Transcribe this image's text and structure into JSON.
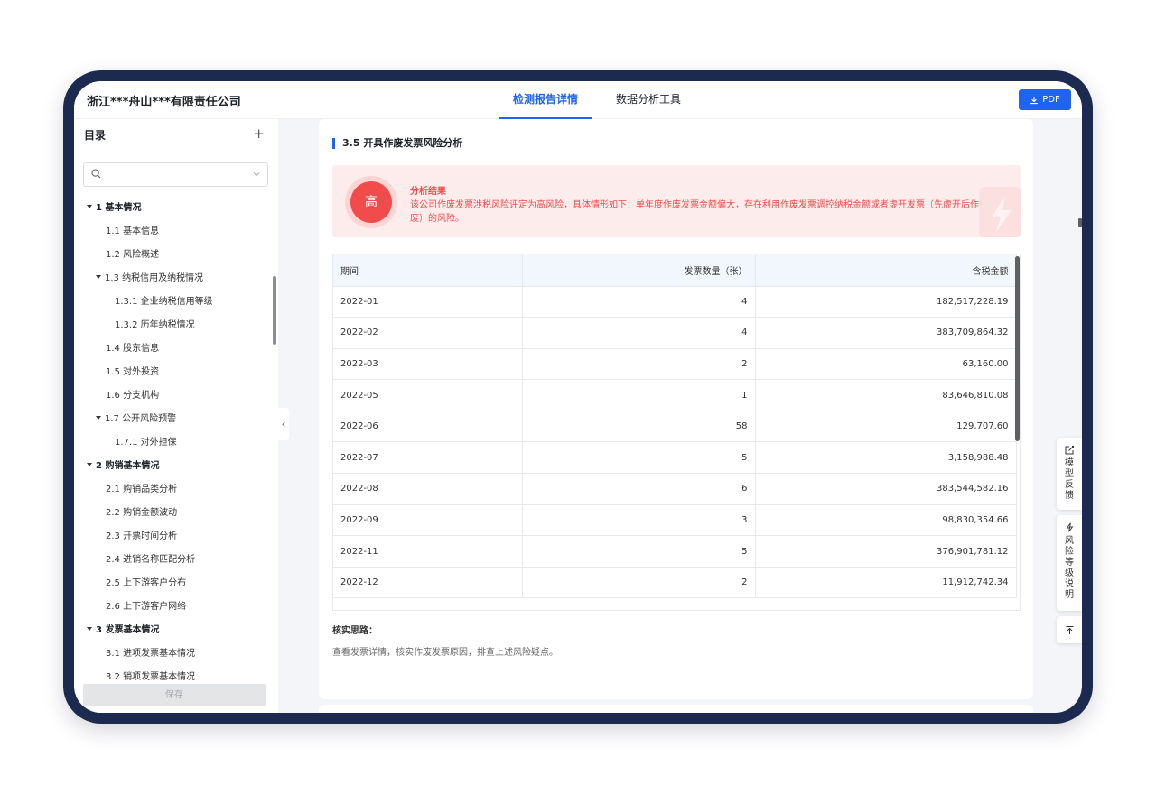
{
  "header": {
    "company": "浙江***舟山***有限责任公司",
    "tabs": [
      {
        "label": "检测报告详情",
        "active": true
      },
      {
        "label": "数据分析工具",
        "active": false
      }
    ],
    "pdf_label": "PDF"
  },
  "sidebar": {
    "title": "目录",
    "search_placeholder": "",
    "items": [
      {
        "label": "1 基本情况",
        "level": 1,
        "caret": true
      },
      {
        "label": "1.1 基本信息",
        "level": 2
      },
      {
        "label": "1.2 风险概述",
        "level": 2
      },
      {
        "label": "1.3 纳税信用及纳税情况",
        "level": 2,
        "caret": true
      },
      {
        "label": "1.3.1 企业纳税信用等级",
        "level": 3
      },
      {
        "label": "1.3.2 历年纳税情况",
        "level": 3
      },
      {
        "label": "1.4 股东信息",
        "level": 2
      },
      {
        "label": "1.5 对外投资",
        "level": 2
      },
      {
        "label": "1.6 分支机构",
        "level": 2
      },
      {
        "label": "1.7 公开风险预警",
        "level": 2,
        "caret": true
      },
      {
        "label": "1.7.1 对外担保",
        "level": 3
      },
      {
        "label": "2 购销基本情况",
        "level": 1,
        "caret": true
      },
      {
        "label": "2.1 购销品类分析",
        "level": 2
      },
      {
        "label": "2.2 购销金额波动",
        "level": 2
      },
      {
        "label": "2.3 开票时间分析",
        "level": 2
      },
      {
        "label": "2.4 进销名称匹配分析",
        "level": 2
      },
      {
        "label": "2.5 上下游客户分布",
        "level": 2
      },
      {
        "label": "2.6 上下游客户网络",
        "level": 2
      },
      {
        "label": "3 发票基本情况",
        "level": 1,
        "caret": true
      },
      {
        "label": "3.1 进项发票基本情况",
        "level": 2
      },
      {
        "label": "3.2 销项发票基本情况",
        "level": 2
      }
    ],
    "save_label": "保存"
  },
  "main": {
    "section_title": "3.5 开具作废发票风险分析",
    "alert": {
      "badge": "高",
      "title": "分析结果",
      "body": "该公司作废发票涉税风险评定为高风险，具体情形如下：单年度作废发票金额偏大，存在利用作废发票调控纳税金额或者虚开发票（先虚开后作废）的风险。"
    },
    "table": {
      "columns": [
        "期间",
        "发票数量（张）",
        "含税金额"
      ],
      "rows": [
        [
          "2022-01",
          "4",
          "182,517,228.19"
        ],
        [
          "2022-02",
          "4",
          "383,709,864.32"
        ],
        [
          "2022-03",
          "2",
          "63,160.00"
        ],
        [
          "2022-05",
          "1",
          "83,646,810.08"
        ],
        [
          "2022-06",
          "58",
          "129,707.60"
        ],
        [
          "2022-07",
          "5",
          "3,158,988.48"
        ],
        [
          "2022-08",
          "6",
          "383,544,582.16"
        ],
        [
          "2022-09",
          "3",
          "98,830,354.66"
        ],
        [
          "2022-11",
          "5",
          "376,901,781.12"
        ],
        [
          "2022-12",
          "2",
          "11,912,742.34"
        ]
      ]
    },
    "verify_title": "核实思路：",
    "verify_text": "查看发票详情，核实作废发票原因，排查上述风险疑点。"
  },
  "float_tools": {
    "feedback": "模型反馈",
    "risk_level": "风险等级说明"
  },
  "colors": {
    "accent": "#1e64f0",
    "danger": "#f24b4b",
    "device_frame": "#1b2a4e"
  }
}
